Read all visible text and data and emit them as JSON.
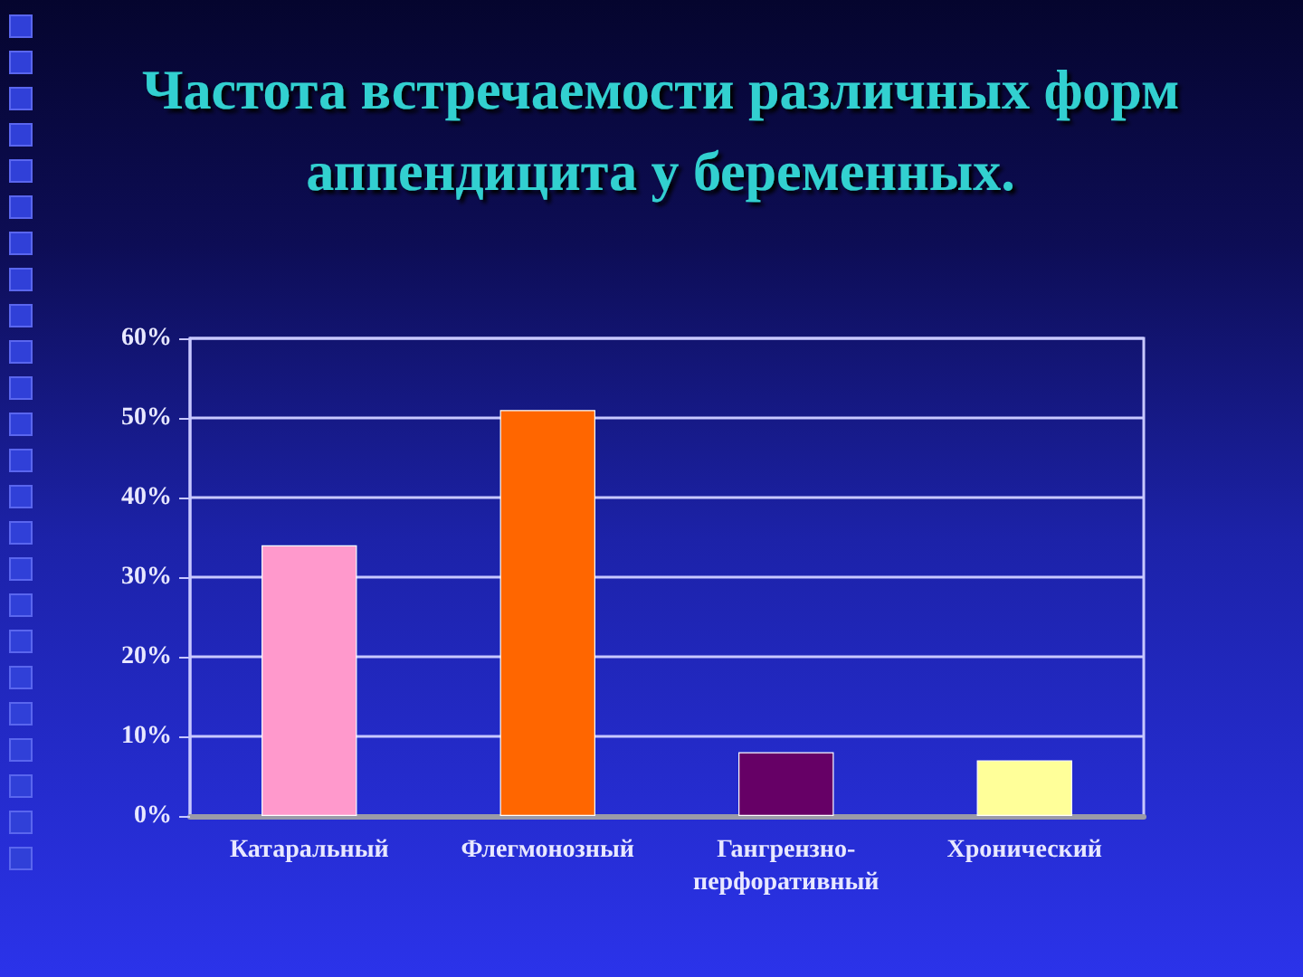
{
  "chart_data": {
    "type": "bar",
    "title": "Частота встречаемости различных форм аппендицита у беременных.",
    "categories": [
      "Катаральный",
      "Флегмонозный",
      "Гангрензно-перфоративный",
      "Хронический"
    ],
    "values": [
      34,
      51,
      8,
      7
    ],
    "colors": [
      "#ff99cc",
      "#ff6600",
      "#660066",
      "#ffff99"
    ],
    "ylim": [
      0,
      60
    ],
    "yticks": [
      {
        "value": 0,
        "label": "0%"
      },
      {
        "value": 10,
        "label": "10%"
      },
      {
        "value": 20,
        "label": "20%"
      },
      {
        "value": 30,
        "label": "30%"
      },
      {
        "value": 40,
        "label": "40%"
      },
      {
        "value": 50,
        "label": "50%"
      },
      {
        "value": 60,
        "label": "60%"
      }
    ],
    "grid": "y"
  }
}
